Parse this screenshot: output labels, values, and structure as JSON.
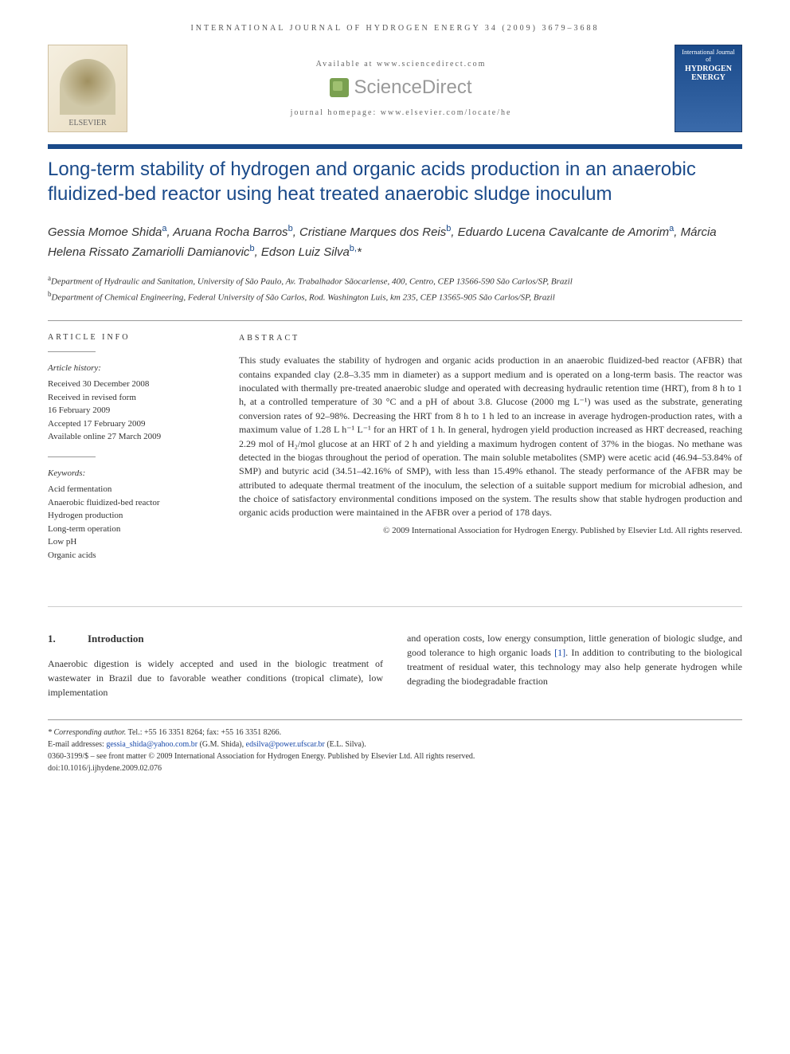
{
  "header": {
    "journal_ref": "INTERNATIONAL JOURNAL OF HYDROGEN ENERGY 34 (2009) 3679–3688",
    "available_at": "Available at www.sciencedirect.com",
    "sciencedirect": "ScienceDirect",
    "homepage": "journal homepage: www.elsevier.com/locate/he",
    "elsevier_label": "ELSEVIER",
    "cover_top": "International Journal of",
    "cover_main": "HYDROGEN ENERGY"
  },
  "title": "Long-term stability of hydrogen and organic acids production in an anaerobic fluidized-bed reactor using heat treated anaerobic sludge inoculum",
  "authors_html": "Gessia Momoe Shida<sup>a</sup>, Aruana Rocha Barros<sup>b</sup>, Cristiane Marques dos Reis<sup>b</sup>, Eduardo Lucena Cavalcante de Amorim<sup>a</sup>, Márcia Helena Rissato Zamariolli Damianovic<sup>b</sup>, Edson Luiz Silva<sup>b,</sup>*",
  "affiliations": {
    "a": "Department of Hydraulic and Sanitation, University of São Paulo, Av. Trabalhador Sãocarlense, 400, Centro, CEP 13566-590 São Carlos/SP, Brazil",
    "b": "Department of Chemical Engineering, Federal University of São Carlos, Rod. Washington Luis, km 235, CEP 13565-905 São Carlos/SP, Brazil"
  },
  "article_info": {
    "heading": "ARTICLE INFO",
    "history_label": "Article history:",
    "history": [
      "Received 30 December 2008",
      "Received in revised form",
      "16 February 2009",
      "Accepted 17 February 2009",
      "Available online 27 March 2009"
    ],
    "keywords_label": "Keywords:",
    "keywords": [
      "Acid fermentation",
      "Anaerobic fluidized-bed reactor",
      "Hydrogen production",
      "Long-term operation",
      "Low pH",
      "Organic acids"
    ]
  },
  "abstract": {
    "heading": "ABSTRACT",
    "text": "This study evaluates the stability of hydrogen and organic acids production in an anaerobic fluidized-bed reactor (AFBR) that contains expanded clay (2.8–3.35 mm in diameter) as a support medium and is operated on a long-term basis. The reactor was inoculated with thermally pre-treated anaerobic sludge and operated with decreasing hydraulic retention time (HRT), from 8 h to 1 h, at a controlled temperature of 30 °C and a pH of about 3.8. Glucose (2000 mg L⁻¹) was used as the substrate, generating conversion rates of 92–98%. Decreasing the HRT from 8 h to 1 h led to an increase in average hydrogen-production rates, with a maximum value of 1.28 L h⁻¹ L⁻¹ for an HRT of 1 h. In general, hydrogen yield production increased as HRT decreased, reaching 2.29 mol of H₂/mol glucose at an HRT of 2 h and yielding a maximum hydrogen content of 37% in the biogas. No methane was detected in the biogas throughout the period of operation. The main soluble metabolites (SMP) were acetic acid (46.94–53.84% of SMP) and butyric acid (34.51–42.16% of SMP), with less than 15.49% ethanol. The steady performance of the AFBR may be attributed to adequate thermal treatment of the inoculum, the selection of a suitable support medium for microbial adhesion, and the choice of satisfactory environmental conditions imposed on the system. The results show that stable hydrogen production and organic acids production were maintained in the AFBR over a period of 178 days.",
    "copyright": "© 2009 International Association for Hydrogen Energy. Published by Elsevier Ltd. All rights reserved."
  },
  "introduction": {
    "heading_num": "1.",
    "heading": "Introduction",
    "col1": "Anaerobic digestion is widely accepted and used in the biologic treatment of wastewater in Brazil due to favorable weather conditions (tropical climate), low implementation",
    "col2_part1": "and operation costs, low energy consumption, little generation of biologic sludge, and good tolerance to high organic loads ",
    "col2_ref": "[1]",
    "col2_part2": ". In addition to contributing to the biological treatment of residual water, this technology may also help generate hydrogen while degrading the biodegradable fraction"
  },
  "footer": {
    "corresponding_label": "* Corresponding author.",
    "corresponding_contact": " Tel.: +55 16 3351 8264; fax: +55 16 3351 8266.",
    "email_label": "E-mail addresses: ",
    "email1": "gessia_shida@yahoo.com.br",
    "email1_name": " (G.M. Shida), ",
    "email2": "edsilva@power.ufscar.br",
    "email2_name": " (E.L. Silva).",
    "issn": "0360-3199/$ – see front matter © 2009 International Association for Hydrogen Energy. Published by Elsevier Ltd. All rights reserved.",
    "doi": "doi:10.1016/j.ijhydene.2009.02.076"
  },
  "colors": {
    "brand_blue": "#1a4a8a",
    "link_blue": "#1a4aaa",
    "text": "#333333",
    "divider": "#999999"
  }
}
